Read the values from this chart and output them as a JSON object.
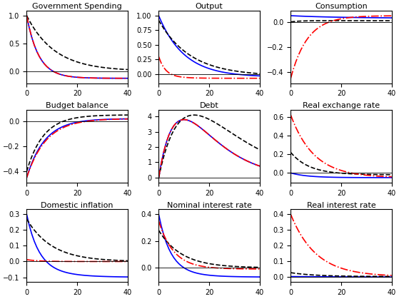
{
  "titles": [
    "Government Spending",
    "Output",
    "Consumption",
    "Budget balance",
    "Debt",
    "Real exchange rate",
    "Domestic inflation",
    "Nominal interest rate",
    "Real interest rate"
  ],
  "line_colors": [
    "blue",
    "black",
    "red"
  ],
  "line_styles": [
    "-",
    "--",
    "-."
  ],
  "xlim": [
    0,
    40
  ],
  "x_ticks": [
    0,
    20,
    40
  ],
  "figsize": [
    5.59,
    4.19
  ],
  "dpi": 100,
  "lw": 1.2,
  "title_fontsize": 8,
  "tick_fontsize": 7
}
